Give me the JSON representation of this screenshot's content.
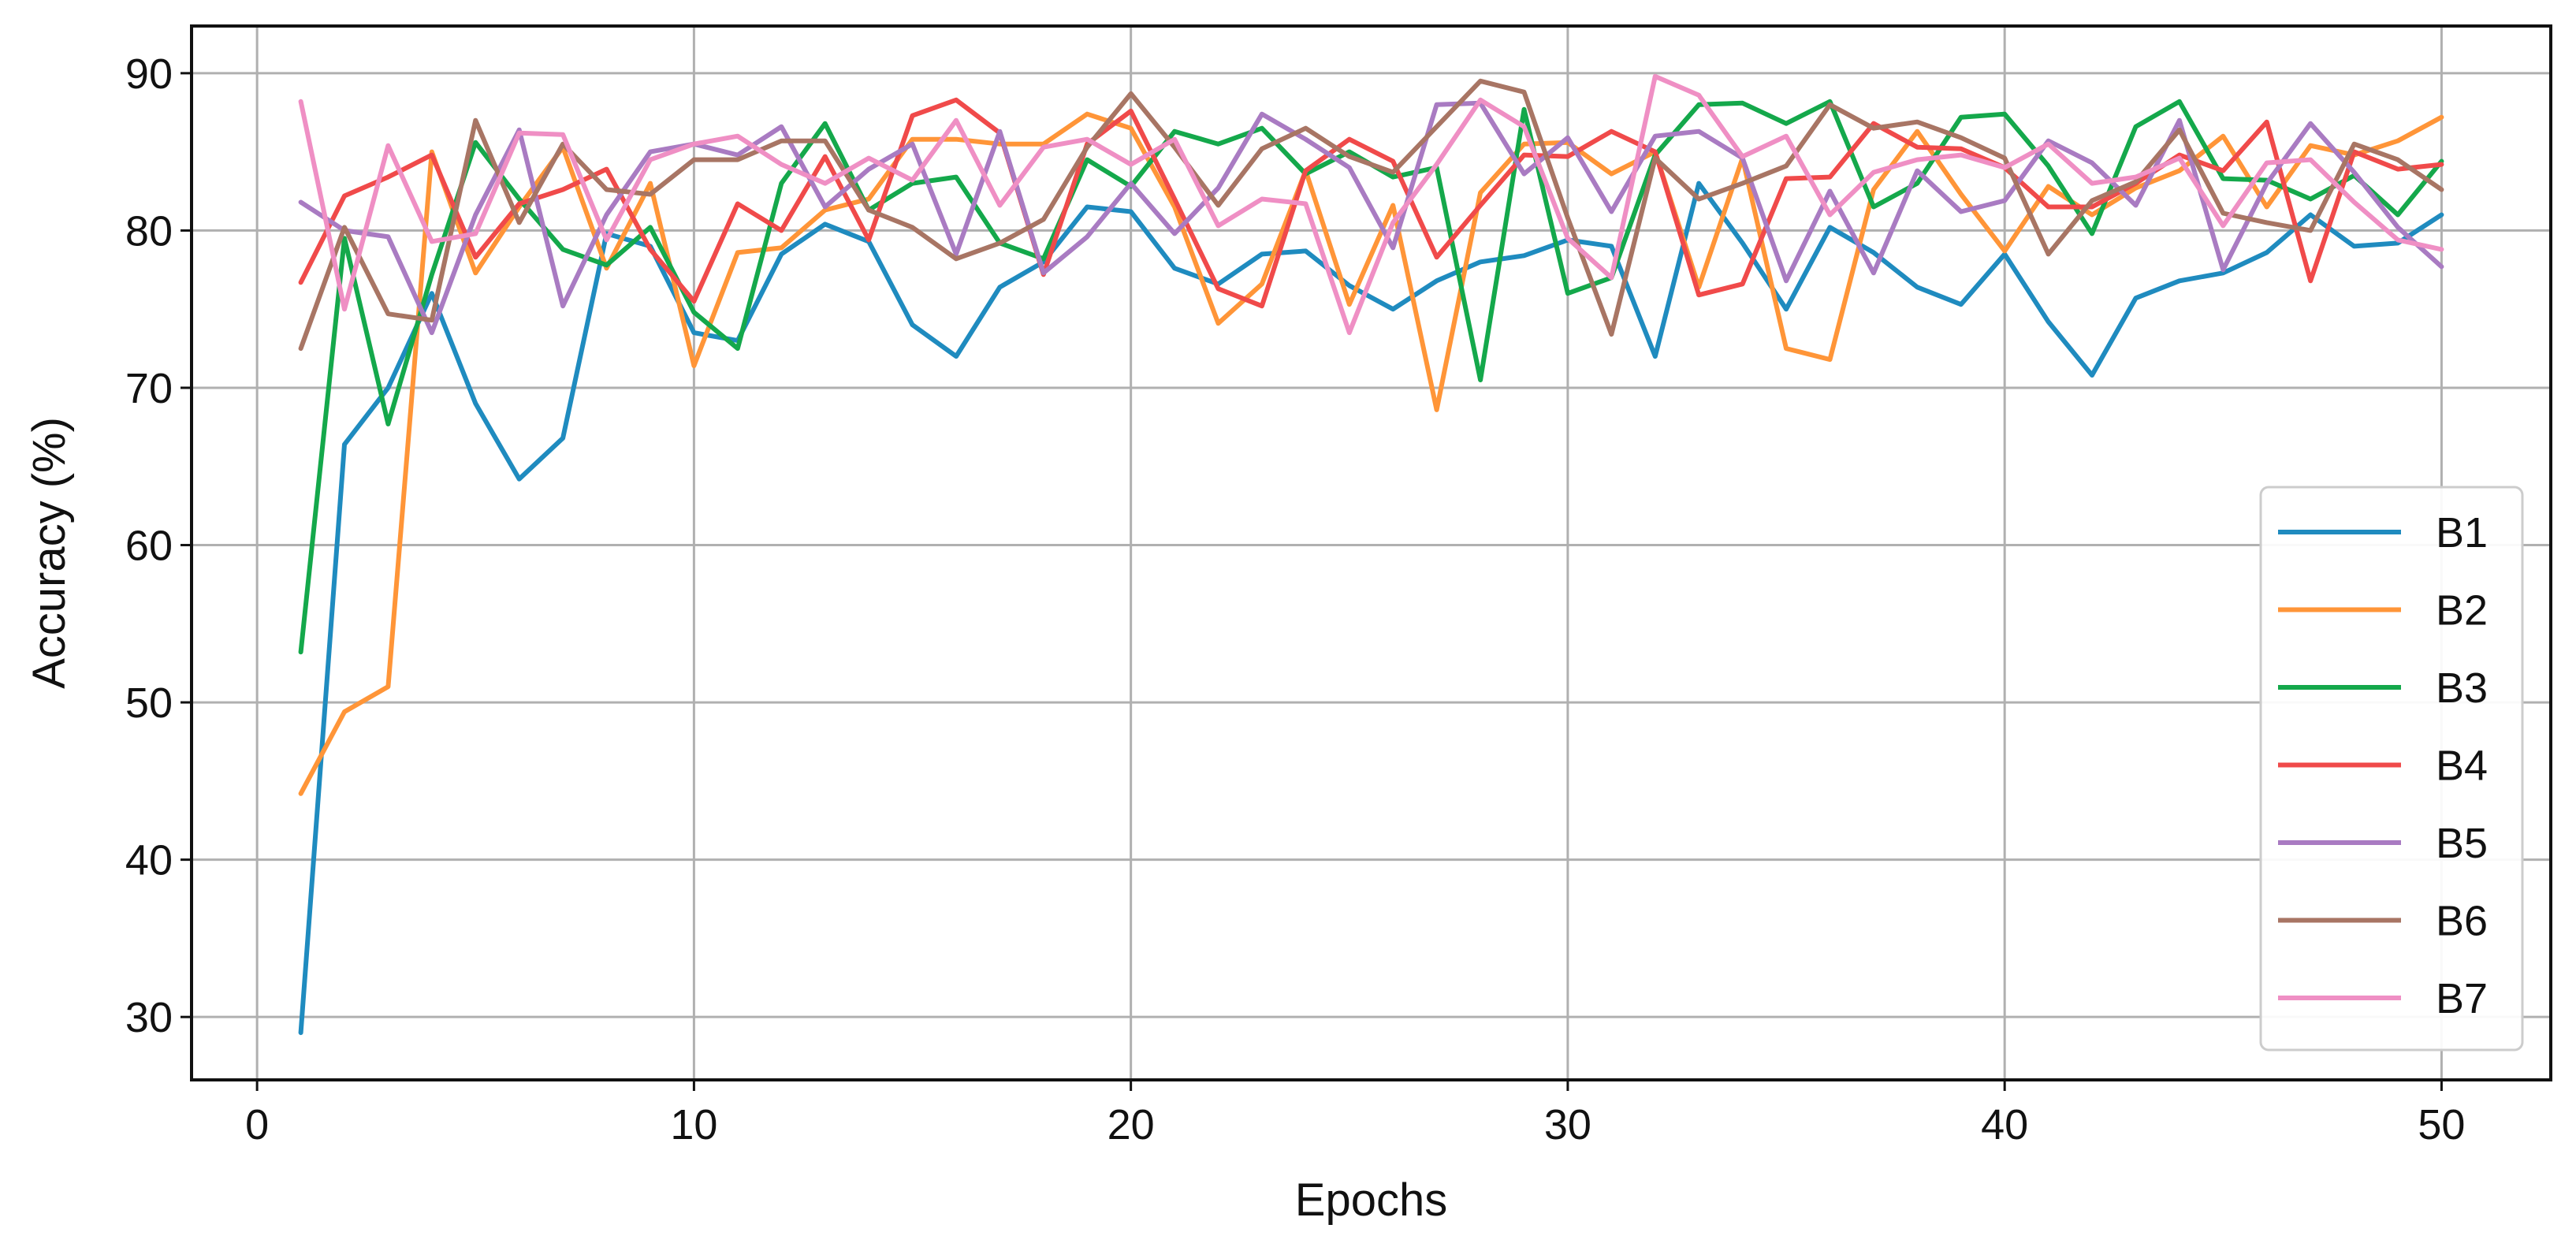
{
  "chart_data": {
    "type": "line",
    "title": "",
    "xlabel": "Epochs",
    "ylabel": "Accuracy (%)",
    "xlim": [
      -1.5,
      52.5
    ],
    "ylim": [
      26,
      93
    ],
    "xticks": [
      0,
      10,
      20,
      30,
      40,
      50
    ],
    "yticks": [
      30,
      40,
      50,
      60,
      70,
      80,
      90
    ],
    "grid": true,
    "legend_position": "lower-right",
    "x": [
      1,
      2,
      3,
      4,
      5,
      6,
      7,
      8,
      9,
      10,
      11,
      12,
      13,
      14,
      15,
      16,
      17,
      18,
      19,
      20,
      21,
      22,
      23,
      24,
      25,
      26,
      27,
      28,
      29,
      30,
      31,
      32,
      33,
      34,
      35,
      36,
      37,
      38,
      39,
      40,
      41,
      42,
      43,
      44,
      45,
      46,
      47,
      48,
      49,
      50
    ],
    "series": [
      {
        "name": "B1",
        "color": "#1f8bbf",
        "values": [
          29,
          66.4,
          70,
          76,
          69,
          64.2,
          66.8,
          79.8,
          79,
          73.5,
          73,
          78.5,
          80.4,
          79.3,
          74,
          72,
          76.4,
          78,
          81.5,
          81.2,
          77.6,
          76.6,
          78.5,
          78.7,
          76.5,
          75,
          76.8,
          78,
          78.4,
          79.4,
          79,
          72,
          83,
          79.2,
          75,
          80.2,
          78.6,
          76.4,
          75.3,
          78.5,
          74.2,
          70.8,
          75.7,
          76.8,
          77.3,
          78.6,
          81,
          79,
          79.2,
          81
        ]
      },
      {
        "name": "B2",
        "color": "#ff9538",
        "values": [
          44.2,
          49.4,
          51,
          85,
          77.3,
          81.5,
          85.3,
          77.6,
          83,
          71.4,
          78.6,
          78.9,
          81.3,
          82,
          85.8,
          85.8,
          85.5,
          85.5,
          87.4,
          86.5,
          81.5,
          74.1,
          76.6,
          83.8,
          75.3,
          81.6,
          68.6,
          82.4,
          85.5,
          85.6,
          83.6,
          85,
          76.4,
          84.6,
          72.5,
          71.8,
          82.6,
          86.3,
          82.3,
          78.7,
          82.8,
          81,
          82.7,
          83.8,
          86,
          81.5,
          85.4,
          84.8,
          85.7,
          87.2
        ]
      },
      {
        "name": "B3",
        "color": "#14a84b",
        "values": [
          53.2,
          79.5,
          67.7,
          77.2,
          85.6,
          82,
          78.8,
          77.8,
          80.2,
          74.8,
          72.5,
          83,
          86.8,
          81.3,
          83,
          83.4,
          79.2,
          78.2,
          84.5,
          82.8,
          86.3,
          85.5,
          86.5,
          83.6,
          85,
          83.4,
          84,
          70.5,
          87.7,
          76,
          77,
          84.8,
          88,
          88.1,
          86.8,
          88.2,
          81.5,
          83,
          87.2,
          87.4,
          84.1,
          79.8,
          86.6,
          88.2,
          83.3,
          83.2,
          82,
          83.5,
          81,
          84.4
        ]
      },
      {
        "name": "B4",
        "color": "#f04a4a",
        "values": [
          76.7,
          82.2,
          83.4,
          84.8,
          78.3,
          81.7,
          82.6,
          83.9,
          78.8,
          75.5,
          81.7,
          80,
          84.7,
          79.4,
          87.3,
          88.3,
          86.2,
          77.2,
          85.5,
          87.6,
          82,
          76.3,
          75.2,
          83.8,
          85.8,
          84.4,
          78.3,
          81.6,
          84.8,
          84.7,
          86.3,
          85,
          75.9,
          76.6,
          83.3,
          83.4,
          86.8,
          85.3,
          85.2,
          84,
          81.5,
          81.5,
          83,
          84.8,
          83.8,
          86.9,
          76.8,
          85,
          83.9,
          84.2
        ]
      },
      {
        "name": "B5",
        "color": "#a97bc2",
        "values": [
          81.8,
          80,
          79.6,
          73.5,
          81,
          86.4,
          75.2,
          81,
          85,
          85.5,
          84.8,
          86.6,
          81.5,
          83.9,
          85.5,
          78.5,
          86.3,
          77.3,
          79.6,
          83,
          79.8,
          82.7,
          87.4,
          85.8,
          84,
          78.9,
          88,
          88.1,
          83.6,
          85.9,
          81.2,
          86,
          86.3,
          84.6,
          76.8,
          82.5,
          77.3,
          83.8,
          81.2,
          81.9,
          85.7,
          84.3,
          81.6,
          87,
          77.5,
          83,
          86.8,
          83.7,
          80.2,
          77.7
        ]
      },
      {
        "name": "B6",
        "color": "#a87564",
        "values": [
          72.5,
          80.2,
          74.7,
          74.3,
          87,
          80.5,
          85.5,
          82.6,
          82.3,
          84.5,
          84.5,
          85.7,
          85.7,
          81.3,
          80.2,
          78.2,
          79.2,
          80.7,
          85.3,
          88.7,
          85.3,
          81.6,
          85.2,
          86.5,
          84.7,
          83.7,
          86.6,
          89.5,
          88.8,
          80.8,
          73.4,
          84.6,
          82,
          83,
          84.1,
          88,
          86.5,
          86.9,
          85.9,
          84.6,
          78.5,
          81.9,
          83.1,
          86.4,
          81.1,
          80.5,
          80,
          85.5,
          84.5,
          82.6
        ]
      },
      {
        "name": "B7",
        "color": "#ef8fc4",
        "values": [
          88.2,
          75,
          85.4,
          79.3,
          79.8,
          86.2,
          86.1,
          79.4,
          84.5,
          85.5,
          86,
          84.2,
          83,
          84.6,
          83.2,
          87,
          81.6,
          85.3,
          85.8,
          84.2,
          85.8,
          80.3,
          82,
          81.7,
          73.5,
          80.5,
          84.2,
          88.3,
          86.6,
          79.5,
          77,
          89.8,
          88.6,
          84.7,
          86,
          81,
          83.7,
          84.5,
          84.8,
          84,
          85.5,
          83,
          83.4,
          84.6,
          80.3,
          84.3,
          84.5,
          81.8,
          79.4,
          78.8
        ]
      }
    ]
  }
}
